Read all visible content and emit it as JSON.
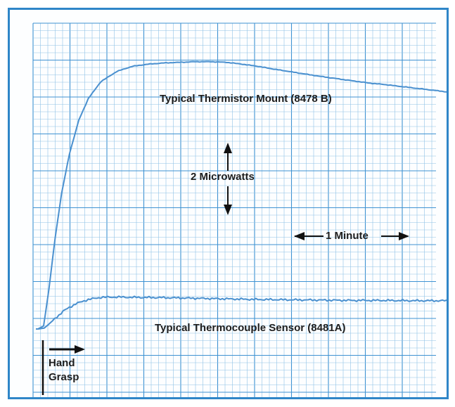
{
  "chart_data": {
    "type": "line",
    "title": "",
    "xlabel": "",
    "ylabel": "",
    "grid": true,
    "colors": {
      "grid_minor": "#8fc2e6",
      "grid_major": "#3f93d2",
      "trace": "#4a90cf",
      "border": "#2f86c8",
      "text": "#1d1d1d"
    },
    "series": [
      {
        "name": "Typical Thermistor Mount (8478 B)",
        "x": [
          0,
          0.18,
          0.35,
          0.55,
          0.75,
          1.0,
          1.3,
          1.6,
          2.0,
          2.5,
          3.0,
          3.5,
          4.0,
          4.5,
          5.0,
          5.5,
          6.0,
          6.5,
          7.0,
          7.5,
          8.0,
          8.5,
          9.0,
          9.5,
          10.0,
          10.5,
          11.0,
          11.5,
          12.0,
          12.5,
          13.0
        ],
        "y": [
          0,
          0.1,
          1.3,
          3.0,
          4.4,
          5.7,
          6.8,
          7.5,
          8.05,
          8.38,
          8.55,
          8.62,
          8.66,
          8.68,
          8.7,
          8.7,
          8.68,
          8.62,
          8.55,
          8.46,
          8.38,
          8.3,
          8.22,
          8.15,
          8.08,
          8.01,
          7.96,
          7.9,
          7.84,
          7.78,
          7.72
        ]
      },
      {
        "name": "Typical Thermocouple Sensor (8481A)",
        "x": [
          0,
          0.2,
          0.4,
          0.8,
          1.2,
          1.6,
          2.0,
          2.5,
          3.0,
          4.0,
          5.0,
          6.0,
          7.0,
          8.0,
          9.0,
          10.0,
          11.0,
          12.0,
          13.0
        ],
        "y": [
          0,
          0.03,
          0.2,
          0.58,
          0.82,
          0.96,
          1.03,
          1.04,
          1.03,
          1.02,
          1.0,
          0.98,
          0.96,
          0.95,
          0.94,
          0.93,
          0.93,
          0.92,
          0.92
        ]
      }
    ],
    "annotations": {
      "thermistor_label": "Typical Thermistor Mount (8478 B)",
      "thermocouple_label": "Typical Thermocouple Sensor (8481A)",
      "vertical_scale": "2 Microwatts",
      "horizontal_scale": "1 Minute",
      "event_line1": "Hand",
      "event_line2": "Grasp"
    }
  }
}
